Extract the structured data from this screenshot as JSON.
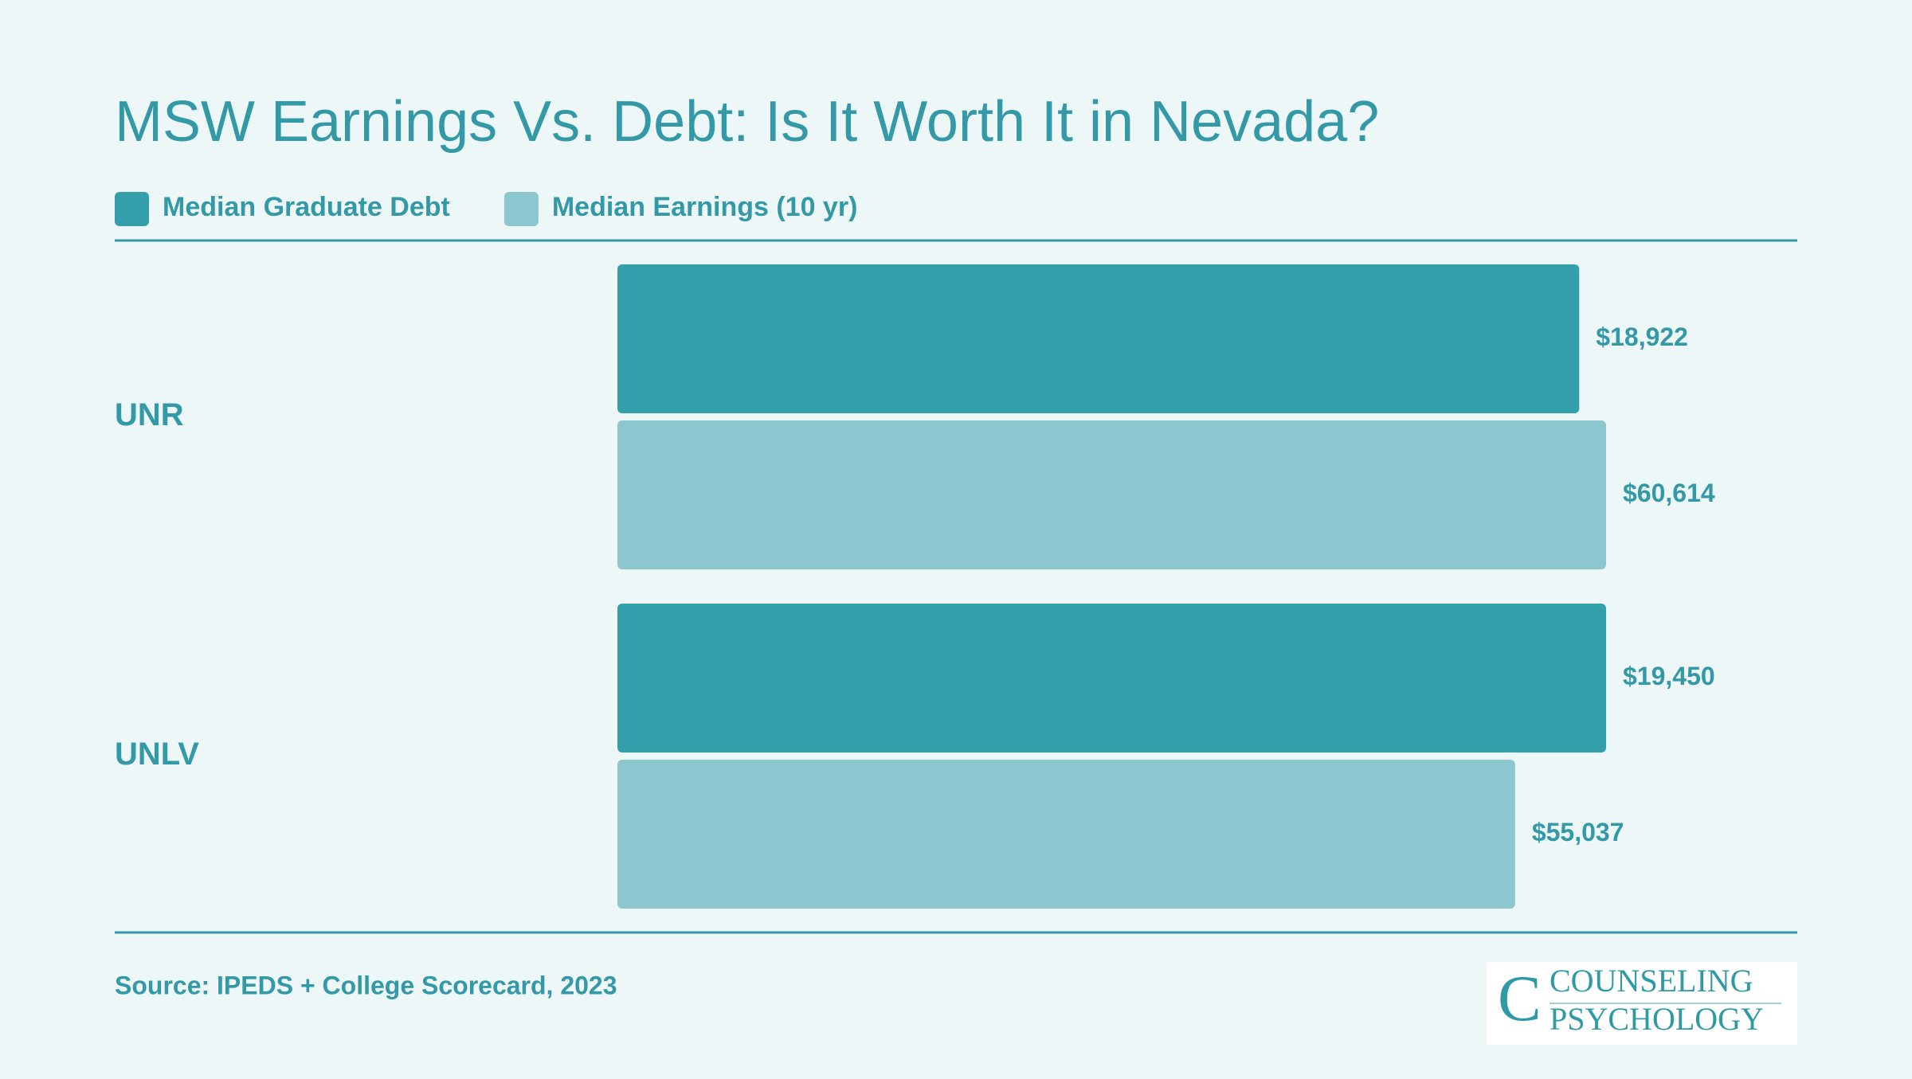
{
  "chart_data": {
    "type": "bar",
    "orientation": "horizontal",
    "title": "MSW Earnings Vs. Debt: Is It Worth It in Nevada?",
    "categories": [
      "UNR",
      "UNLV"
    ],
    "series": [
      {
        "name": "Median Graduate Debt",
        "color": "#339fab",
        "values": [
          18922,
          19450
        ],
        "value_labels": [
          "$18,922",
          "$19,450"
        ]
      },
      {
        "name": "Median Earnings (10 yr)",
        "color": "#8cc6cf",
        "values": [
          60614,
          55037
        ],
        "value_labels": [
          "$60,614",
          "$55,037"
        ]
      }
    ],
    "legend": "top-left",
    "source": "Source: IPEDS + College Scorecard, 2023"
  },
  "logo": {
    "line1": "COUNSELING",
    "line2": "PSYCHOLOGY"
  }
}
